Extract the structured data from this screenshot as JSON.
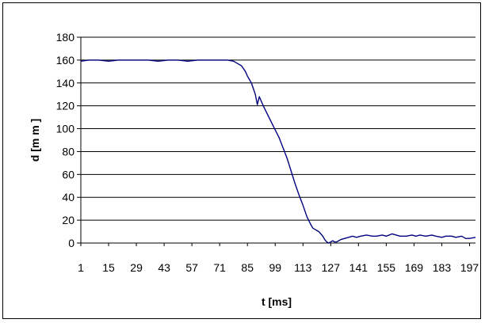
{
  "chart_data": {
    "type": "line",
    "title": "",
    "xlabel": "t [ms]",
    "ylabel": "d  [m m ]",
    "xlim": [
      1,
      200
    ],
    "ylim": [
      0,
      180
    ],
    "y_ticks": [
      0,
      20,
      40,
      60,
      80,
      100,
      120,
      140,
      160,
      180
    ],
    "x_tick_labels": [
      "1",
      "15",
      "29",
      "43",
      "57",
      "71",
      "85",
      "99",
      "113",
      "127",
      "141",
      "155",
      "169",
      "183",
      "197"
    ],
    "grid": "horizontal",
    "legend": "none",
    "series": [
      {
        "color": "#000080",
        "x": [
          1,
          5,
          10,
          15,
          20,
          25,
          30,
          35,
          40,
          45,
          50,
          55,
          60,
          65,
          70,
          75,
          78,
          80,
          82,
          84,
          85,
          86,
          87,
          88,
          89,
          90,
          91,
          92,
          93,
          95,
          97,
          99,
          101,
          103,
          105,
          107,
          109,
          111,
          113,
          115,
          117,
          118,
          119,
          120,
          121,
          122,
          123,
          124,
          125,
          126,
          127,
          128,
          129,
          130,
          132,
          134,
          136,
          138,
          140,
          142,
          145,
          148,
          150,
          153,
          155,
          158,
          160,
          162,
          165,
          168,
          170,
          172,
          175,
          178,
          180,
          183,
          185,
          188,
          190,
          193,
          195,
          197,
          200
        ],
        "y": [
          159,
          160,
          160,
          159,
          160,
          160,
          160,
          160,
          159,
          160,
          160,
          159,
          160,
          160,
          160,
          160,
          159,
          157,
          155,
          150,
          146,
          143,
          140,
          135,
          130,
          121,
          128,
          124,
          120,
          113,
          106,
          99,
          92,
          83,
          74,
          63,
          52,
          42,
          33,
          23,
          16,
          13,
          12,
          11,
          10,
          8,
          6,
          3,
          1,
          0,
          1,
          2,
          1,
          1,
          3,
          4,
          5,
          6,
          5,
          6,
          7,
          6,
          6,
          7,
          6,
          8,
          7,
          6,
          6,
          7,
          6,
          7,
          6,
          7,
          6,
          5,
          6,
          6,
          5,
          6,
          4,
          4,
          5
        ]
      }
    ]
  }
}
